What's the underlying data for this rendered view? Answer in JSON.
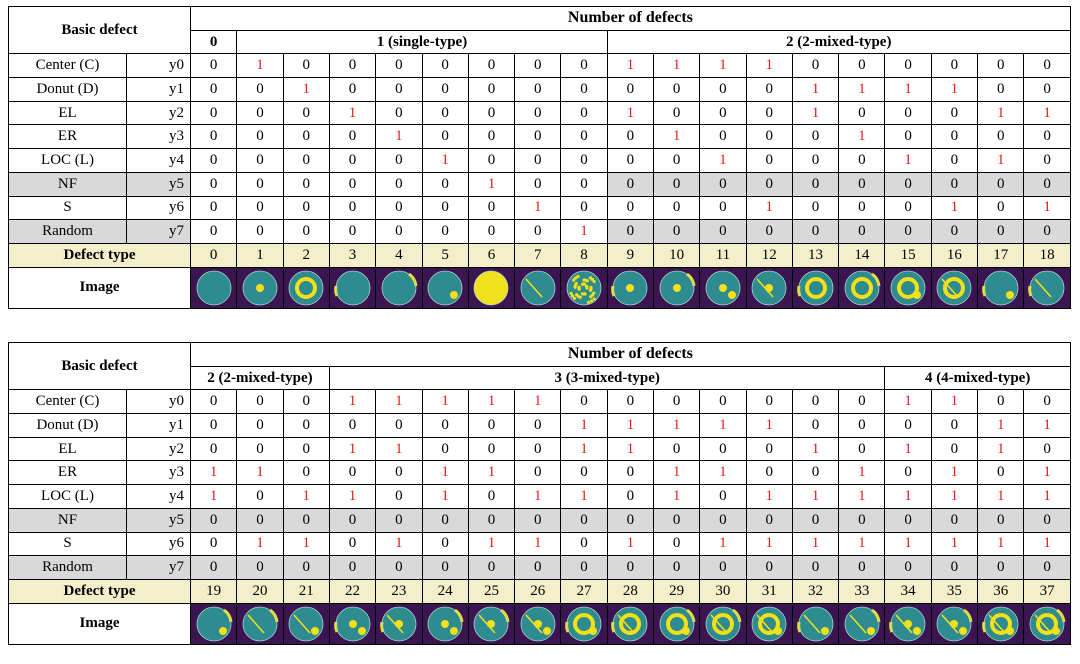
{
  "labels": {
    "basic_defect": "Basic defect",
    "number_of_defects": "Number of defects",
    "defect_type": "Defect type",
    "image": "Image"
  },
  "defects": [
    {
      "name": "Center (C)",
      "var": "y0"
    },
    {
      "name": "Donut (D)",
      "var": "y1"
    },
    {
      "name": "EL",
      "var": "y2"
    },
    {
      "name": "ER",
      "var": "y3"
    },
    {
      "name": "LOC (L)",
      "var": "y4"
    },
    {
      "name": "NF",
      "var": "y5"
    },
    {
      "name": "S",
      "var": "y6"
    },
    {
      "name": "Random",
      "var": "y7"
    }
  ],
  "tables": [
    {
      "groups": [
        {
          "label": "0",
          "span": 1
        },
        {
          "label": "1 (single-type)",
          "span": 8
        },
        {
          "label": "2 (2-mixed-type)",
          "span": 10
        }
      ],
      "types": [
        "0",
        "1",
        "2",
        "3",
        "4",
        "5",
        "6",
        "7",
        "8",
        "9",
        "10",
        "11",
        "12",
        "13",
        "14",
        "15",
        "16",
        "17",
        "18"
      ],
      "matrix": [
        [
          0,
          1,
          0,
          0,
          0,
          0,
          0,
          0,
          0,
          1,
          1,
          1,
          1,
          0,
          0,
          0,
          0,
          0,
          0
        ],
        [
          0,
          0,
          1,
          0,
          0,
          0,
          0,
          0,
          0,
          0,
          0,
          0,
          0,
          1,
          1,
          1,
          1,
          0,
          0
        ],
        [
          0,
          0,
          0,
          1,
          0,
          0,
          0,
          0,
          0,
          1,
          0,
          0,
          0,
          1,
          0,
          0,
          0,
          1,
          1
        ],
        [
          0,
          0,
          0,
          0,
          1,
          0,
          0,
          0,
          0,
          0,
          1,
          0,
          0,
          0,
          1,
          0,
          0,
          0,
          0
        ],
        [
          0,
          0,
          0,
          0,
          0,
          1,
          0,
          0,
          0,
          0,
          0,
          1,
          0,
          0,
          0,
          1,
          0,
          1,
          0
        ],
        [
          0,
          0,
          0,
          0,
          0,
          0,
          1,
          0,
          0,
          0,
          0,
          0,
          0,
          0,
          0,
          0,
          0,
          0,
          0
        ],
        [
          0,
          0,
          0,
          0,
          0,
          0,
          0,
          1,
          0,
          0,
          0,
          0,
          1,
          0,
          0,
          0,
          1,
          0,
          1
        ],
        [
          0,
          0,
          0,
          0,
          0,
          0,
          0,
          0,
          1,
          0,
          0,
          0,
          0,
          0,
          0,
          0,
          0,
          0,
          0
        ]
      ]
    },
    {
      "groups": [
        {
          "label": "2 (2-mixed-type)",
          "span": 3
        },
        {
          "label": "3 (3-mixed-type)",
          "span": 12
        },
        {
          "label": "4 (4-mixed-type)",
          "span": 4
        }
      ],
      "types": [
        "19",
        "20",
        "21",
        "22",
        "23",
        "24",
        "25",
        "26",
        "27",
        "28",
        "29",
        "30",
        "31",
        "32",
        "33",
        "34",
        "35",
        "36",
        "37"
      ],
      "matrix": [
        [
          0,
          0,
          0,
          1,
          1,
          1,
          1,
          1,
          0,
          0,
          0,
          0,
          0,
          0,
          0,
          1,
          1,
          0,
          0
        ],
        [
          0,
          0,
          0,
          0,
          0,
          0,
          0,
          0,
          1,
          1,
          1,
          1,
          1,
          0,
          0,
          0,
          0,
          1,
          1
        ],
        [
          0,
          0,
          0,
          1,
          1,
          0,
          0,
          0,
          1,
          1,
          0,
          0,
          0,
          1,
          0,
          1,
          0,
          1,
          0
        ],
        [
          1,
          1,
          0,
          0,
          0,
          1,
          1,
          0,
          0,
          0,
          1,
          1,
          0,
          0,
          1,
          0,
          1,
          0,
          1
        ],
        [
          1,
          0,
          1,
          1,
          0,
          1,
          0,
          1,
          1,
          0,
          1,
          0,
          1,
          1,
          1,
          1,
          1,
          1,
          1
        ],
        [
          0,
          0,
          0,
          0,
          0,
          0,
          0,
          0,
          0,
          0,
          0,
          0,
          0,
          0,
          0,
          0,
          0,
          0,
          0
        ],
        [
          0,
          1,
          1,
          0,
          1,
          0,
          1,
          1,
          0,
          1,
          0,
          1,
          1,
          1,
          1,
          1,
          1,
          1,
          1
        ],
        [
          0,
          0,
          0,
          0,
          0,
          0,
          0,
          0,
          0,
          0,
          0,
          0,
          0,
          0,
          0,
          0,
          0,
          0,
          0
        ]
      ]
    }
  ],
  "colors": {
    "one_value": "#e0201b",
    "zero_value": "#000000",
    "gray_row": "#d9d9d9",
    "defect_type_row": "#f3efcb",
    "wafer_base": "#2e8b8f",
    "wafer_defect": "#f2e01a",
    "image_bg": "#3b1552"
  },
  "wafer_icons": [
    "wafer-icon"
  ]
}
